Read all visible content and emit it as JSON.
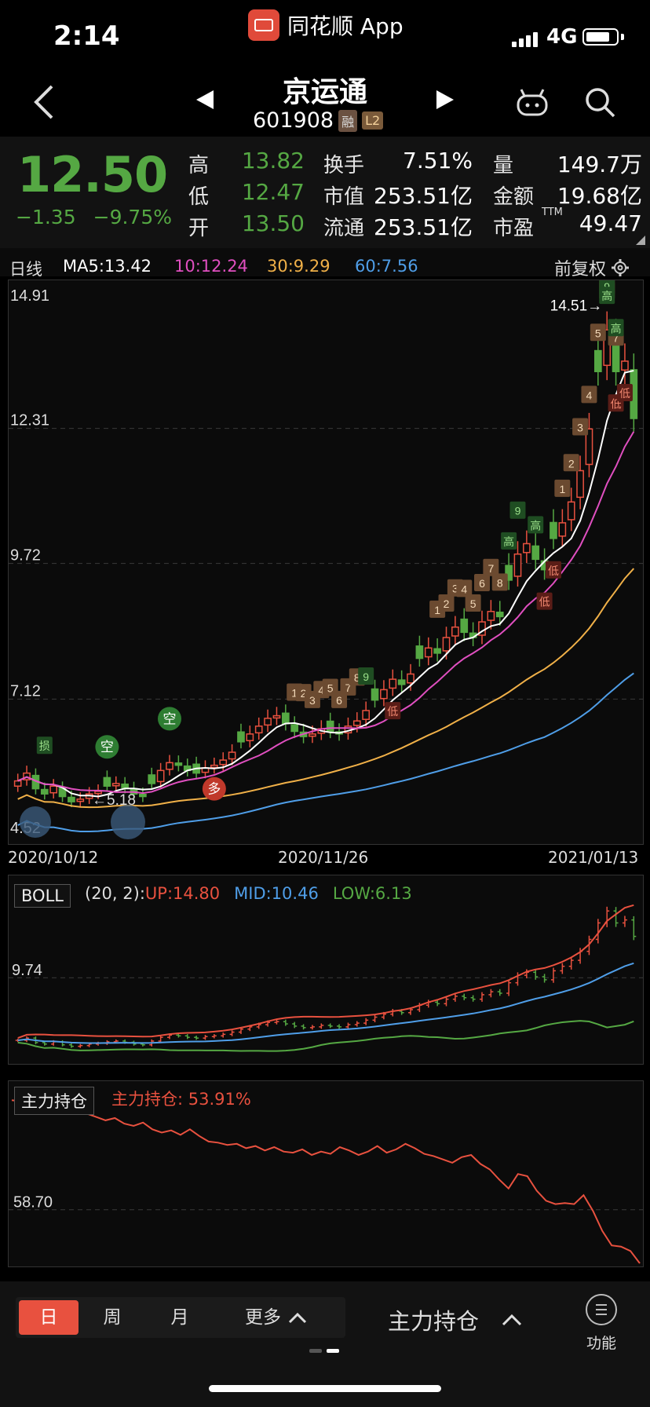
{
  "status_bar": {
    "time": "2:14",
    "app_name": "同花顺 App",
    "network": "4G",
    "battery_level": 0.8
  },
  "header": {
    "stock_name": "京运通",
    "stock_code": "601908",
    "tag_margin": "融",
    "tag_l2": "L2"
  },
  "quote": {
    "price": "12.50",
    "change": "−1.35",
    "change_pct": "−9.75%",
    "fields": [
      {
        "label": "高",
        "value": "13.82"
      },
      {
        "label": "低",
        "value": "12.47"
      },
      {
        "label": "开",
        "value": "13.50"
      },
      {
        "label": "换手",
        "value": "7.51%"
      },
      {
        "label": "市值",
        "value": "253.51亿"
      },
      {
        "label": "流通",
        "value": "253.51亿"
      },
      {
        "label": "量",
        "value": "149.7万"
      },
      {
        "label": "金额",
        "value": "19.68亿"
      },
      {
        "label": "市盈",
        "value": "49.47"
      }
    ],
    "ttm": "TTM"
  },
  "kline_header": {
    "period": "日线",
    "ma5": "MA5:13.42",
    "ma10": "10:12.24",
    "ma30": "30:9.29",
    "ma60": "60:7.56",
    "adjust": "前复权"
  },
  "colors": {
    "up": "#e8513f",
    "down": "#55a843",
    "ma5": "#ffffff",
    "ma10": "#e04fc0",
    "ma30": "#f0b048",
    "ma60": "#4f9ee8"
  },
  "chart_data": [
    {
      "type": "candlestick",
      "title": "",
      "y_ticks": [
        "14.91",
        "12.31",
        "9.72",
        "7.12",
        "4.52"
      ],
      "ylim": [
        4.52,
        14.91
      ],
      "x_ticks": [
        "2020/10/12",
        "2020/11/26",
        "2021/01/13"
      ],
      "max_annotation": "14.51→",
      "min_annotation": "←5.18",
      "closes": [
        5.55,
        5.7,
        5.4,
        5.3,
        5.45,
        5.25,
        5.15,
        5.2,
        5.3,
        5.35,
        5.45,
        5.5,
        5.42,
        5.3,
        5.25,
        5.5,
        5.75,
        5.9,
        5.85,
        5.75,
        5.7,
        5.8,
        5.85,
        5.95,
        6.1,
        6.3,
        6.45,
        6.6,
        6.75,
        6.8,
        6.65,
        6.5,
        6.4,
        6.45,
        6.55,
        6.5,
        6.45,
        6.6,
        6.7,
        6.9,
        7.1,
        7.3,
        7.5,
        7.4,
        7.6,
        7.9,
        8.1,
        8.0,
        8.3,
        8.5,
        8.4,
        8.3,
        8.6,
        8.8,
        8.7,
        9.4,
        9.9,
        10.1,
        9.8,
        9.6,
        10.2,
        10.5,
        10.9,
        11.5,
        12.3,
        13.4,
        14.2,
        13.4,
        13.6,
        12.5
      ],
      "series": [
        {
          "name": "MA5:13.42"
        },
        {
          "name": "10:12.24"
        },
        {
          "name": "30:9.29"
        },
        {
          "name": "60:7.56"
        }
      ],
      "signals": [
        "损",
        "空",
        "空",
        "多",
        "1",
        "2",
        "3",
        "4",
        "5",
        "6",
        "7",
        "8",
        "9",
        "低",
        "1",
        "2",
        "3",
        "4",
        "5",
        "6",
        "7",
        "8",
        "高",
        "9",
        "高",
        "低",
        "低",
        "1",
        "2",
        "3",
        "4",
        "5",
        "6",
        "7",
        "8",
        "9",
        "高",
        "低",
        "高",
        "低"
      ]
    },
    {
      "type": "line",
      "title": "BOLL",
      "params": "(20, 2):",
      "up": "UP:14.80",
      "mid": "MID:10.46",
      "low": "LOW:6.13",
      "y_ticks": [
        "9.74"
      ]
    },
    {
      "type": "line",
      "title": "主力持仓",
      "value_label": "主力持仓: 53.91%",
      "y_ticks": [
        "58.70"
      ],
      "values": [
        68.5,
        68.4,
        68.6,
        68.2,
        68.1,
        67.8,
        67.6,
        67.7,
        67.3,
        67.0,
        66.7,
        66.9,
        66.4,
        66.2,
        66.5,
        65.9,
        65.6,
        65.8,
        65.4,
        65.9,
        65.3,
        64.8,
        64.7,
        64.5,
        64.6,
        64.2,
        64.4,
        64.0,
        64.3,
        63.9,
        63.8,
        64.1,
        63.6,
        63.9,
        63.7,
        64.3,
        64.0,
        63.6,
        63.9,
        64.4,
        63.8,
        64.1,
        64.6,
        64.2,
        63.7,
        63.5,
        63.2,
        62.9,
        63.4,
        63.6,
        62.8,
        62.3,
        61.4,
        60.6,
        61.9,
        61.7,
        60.4,
        59.5,
        59.2,
        59.3,
        59.2,
        60.0,
        58.6,
        56.8,
        55.5,
        55.4,
        55.0,
        53.9
      ]
    }
  ],
  "bottom_bar": {
    "tabs": [
      {
        "label": "日"
      },
      {
        "label": "周"
      },
      {
        "label": "月"
      },
      {
        "label": "更多"
      }
    ],
    "indicator": "主力持仓",
    "func_label": "功能"
  }
}
